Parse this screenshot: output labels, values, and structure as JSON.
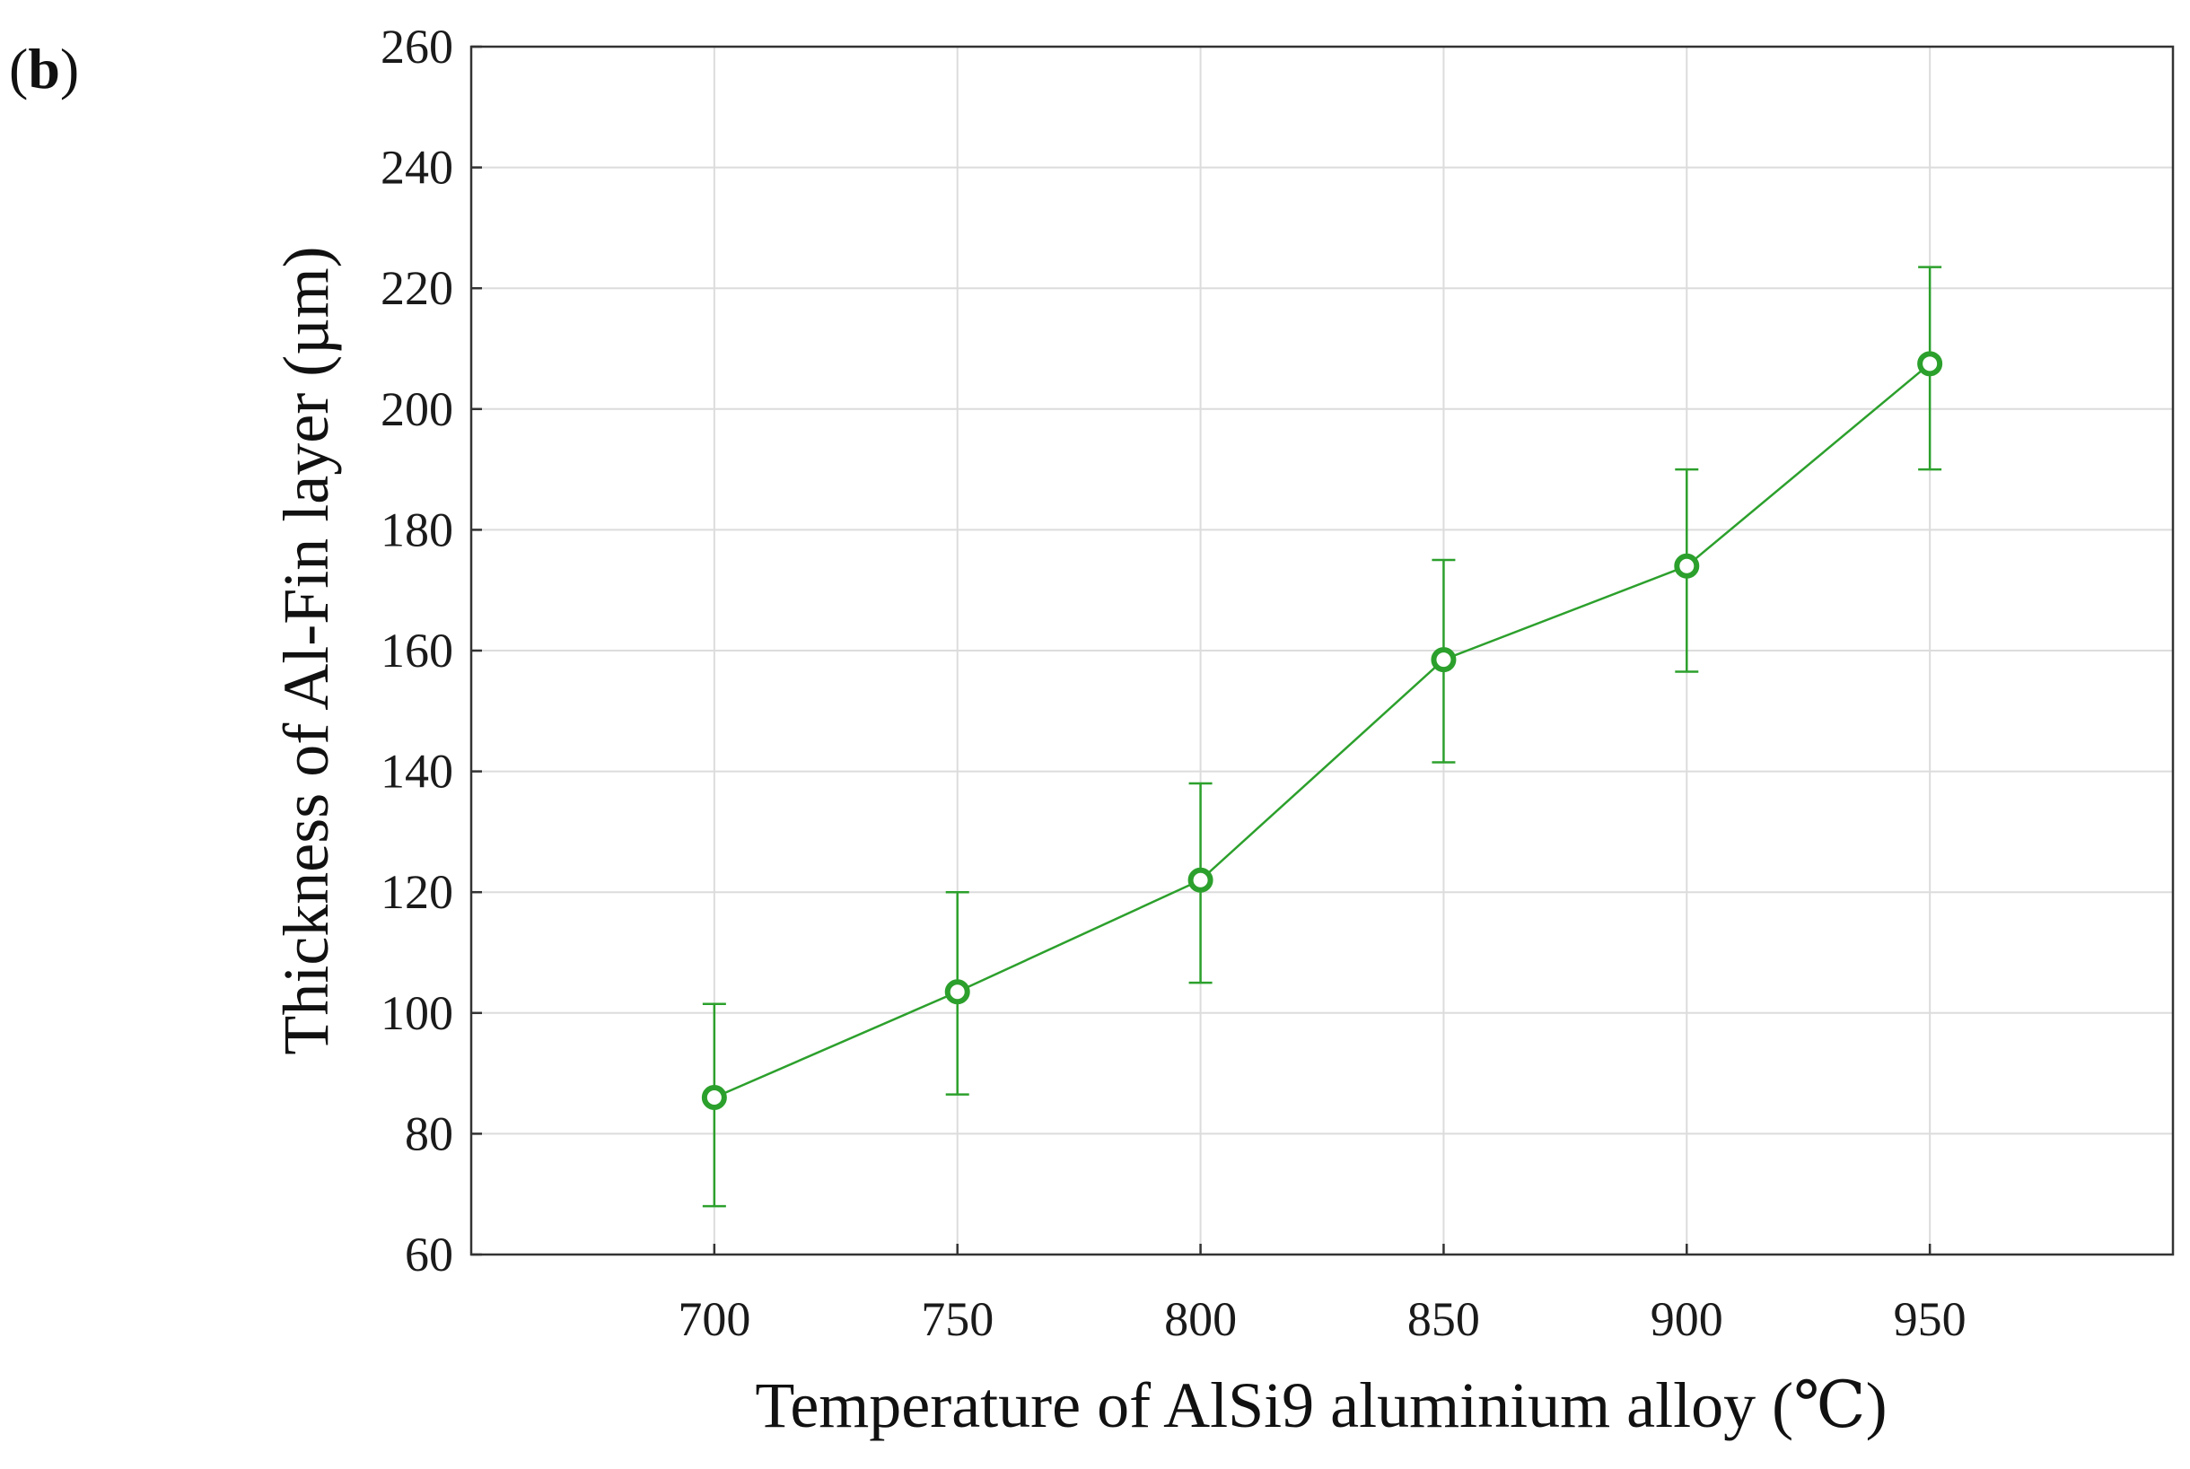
{
  "panel_label": "(b)",
  "chart_data": {
    "type": "line",
    "title": "",
    "xlabel": "Temperature of AlSi9 aluminium alloy (℃)",
    "ylabel": "Thickness of Al-Fin layer (µm)",
    "x": [
      700,
      750,
      800,
      850,
      900,
      950
    ],
    "x_ticks": [
      700,
      750,
      800,
      850,
      900,
      950
    ],
    "y_ticks": [
      60,
      80,
      100,
      120,
      140,
      160,
      180,
      200,
      220,
      240,
      260
    ],
    "xlim": [
      650,
      1000
    ],
    "ylim": [
      60,
      260
    ],
    "grid": true,
    "series": [
      {
        "values": [
          86,
          103.5,
          122,
          158.5,
          174,
          207.5
        ],
        "error_upper": [
          101.5,
          120,
          138,
          175,
          190,
          223.5
        ],
        "error_lower": [
          68,
          86.5,
          105,
          141.5,
          156.5,
          190
        ],
        "color": "#2ca02c"
      }
    ]
  }
}
